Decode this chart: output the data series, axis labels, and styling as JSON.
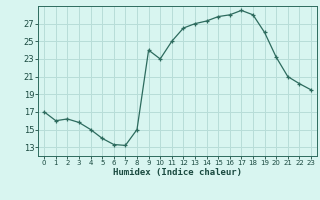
{
  "x": [
    0,
    1,
    2,
    3,
    4,
    5,
    6,
    7,
    8,
    9,
    10,
    11,
    12,
    13,
    14,
    15,
    16,
    17,
    18,
    19,
    20,
    21,
    22,
    23
  ],
  "y": [
    17,
    16,
    16.2,
    15.8,
    15,
    14,
    13.3,
    13.2,
    15,
    24,
    23,
    25,
    26.5,
    27,
    27.3,
    27.8,
    28,
    28.5,
    28,
    26,
    23.2,
    21,
    20.2,
    19.5
  ],
  "line_color": "#2d6b5e",
  "marker": "+",
  "background_color": "#d8f5f0",
  "grid_color": "#b8ddd8",
  "xlabel": "Humidex (Indice chaleur)",
  "xlabel_color": "#1a4a40",
  "xlim": [
    -0.5,
    23.5
  ],
  "ylim": [
    12,
    29
  ],
  "yticks": [
    13,
    15,
    17,
    19,
    21,
    23,
    25,
    27
  ],
  "xticks": [
    0,
    1,
    2,
    3,
    4,
    5,
    6,
    7,
    8,
    9,
    10,
    11,
    12,
    13,
    14,
    15,
    16,
    17,
    18,
    19,
    20,
    21,
    22,
    23
  ],
  "tick_color": "#1a4a40",
  "spine_color": "#2d6b5e"
}
